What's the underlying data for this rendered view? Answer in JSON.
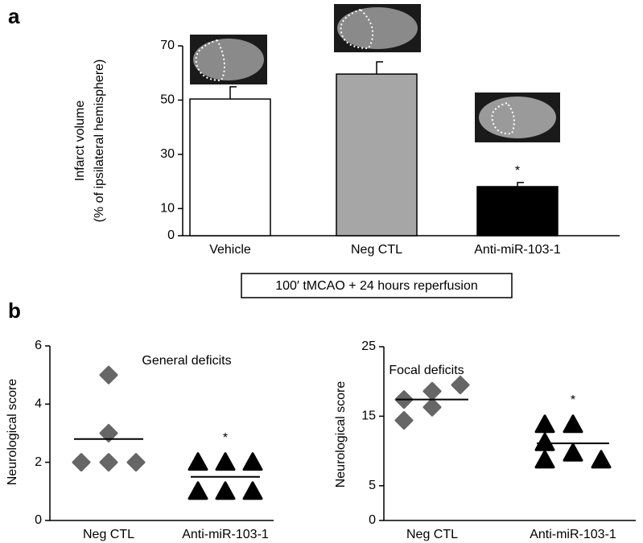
{
  "chart_data": [
    {
      "type": "bar",
      "panel": "a",
      "ylabel": [
        "Infarct volume",
        "(% of ipsilateral hemisphere)"
      ],
      "categories": [
        "Vehicle",
        "Neg CTL",
        "Anti-miR-103-1"
      ],
      "values": [
        50.4,
        59.6,
        18.1
      ],
      "errors": [
        4.5,
        4.5,
        1.5
      ],
      "colors": [
        "#ffffff",
        "#a6a6a6",
        "#000000"
      ],
      "ylim": [
        0,
        70
      ],
      "yticks": [
        0,
        10,
        30,
        50,
        70
      ],
      "annotation": {
        "text": "*",
        "category": "Anti-miR-103-1"
      },
      "footnote": "100′ tMCAO + 24 hours reperfusion"
    },
    {
      "type": "scatter",
      "panel": "b",
      "title": "General deficits",
      "ylabel": "Neurological score",
      "ylim": [
        0,
        6
      ],
      "yticks": [
        0,
        2,
        4,
        6
      ],
      "groups": [
        {
          "category": "Neg CTL",
          "marker": "diamond",
          "color": "#666666",
          "values": [
            2,
            2,
            2,
            3,
            5
          ],
          "mean": 2.8
        },
        {
          "category": "Anti-miR-103-1",
          "marker": "triangle",
          "color": "#000000",
          "values": [
            1,
            1,
            1,
            2,
            2,
            2
          ],
          "mean": 1.5,
          "annotation": "*"
        }
      ]
    },
    {
      "type": "scatter",
      "title": "Focal deficits",
      "ylabel": "Neurological score",
      "ylim": [
        0,
        25
      ],
      "yticks": [
        0,
        5,
        15,
        25
      ],
      "groups": [
        {
          "category": "Neg CTL",
          "marker": "diamond",
          "color": "#666666",
          "values": [
            17.4,
            14.4,
            18.6,
            16.3,
            19.5
          ],
          "mean": 17.4
        },
        {
          "category": "Anti-miR-103-1",
          "marker": "triangle",
          "color": "#000000",
          "values": [
            13.8,
            11.2,
            8.7,
            13.8,
            9.7,
            8.7
          ],
          "mean": 11.1,
          "annotation": "*"
        }
      ]
    }
  ]
}
